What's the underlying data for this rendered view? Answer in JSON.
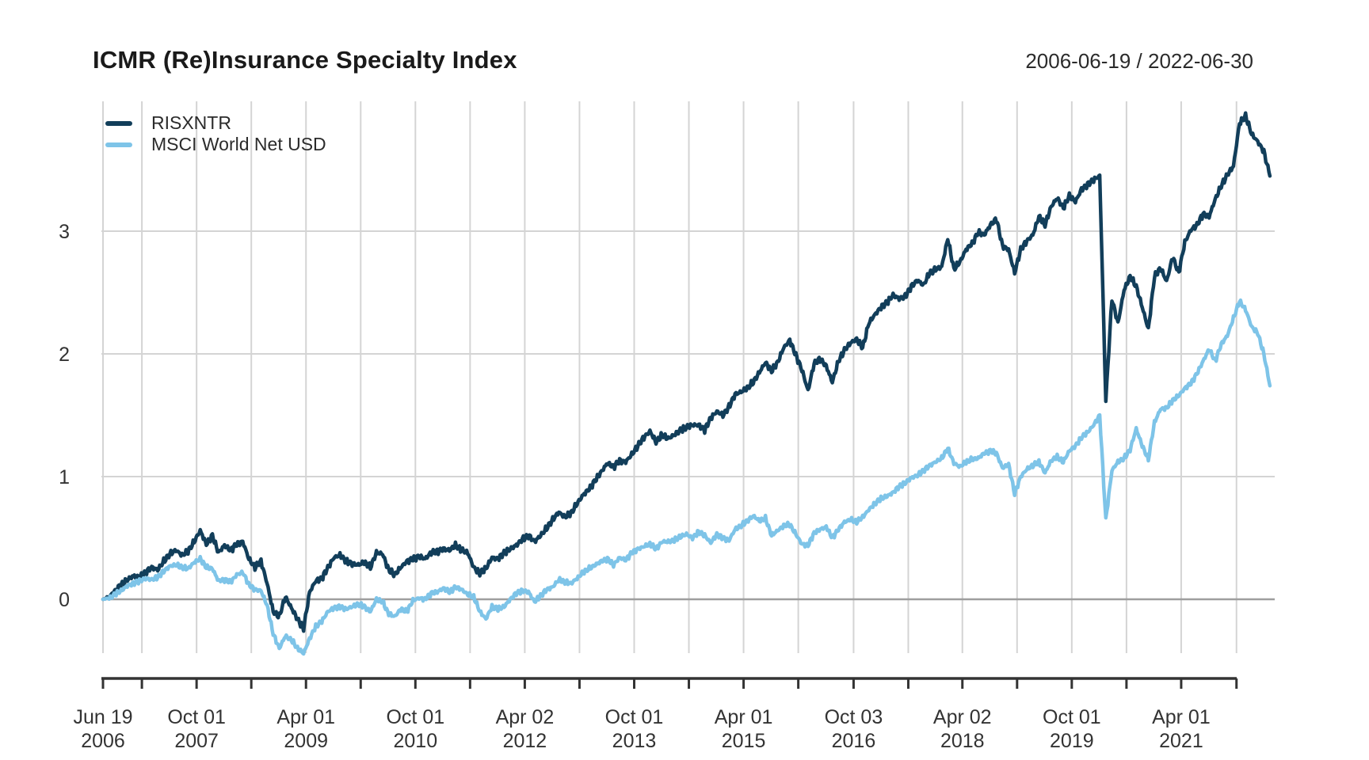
{
  "header": {
    "title": "ICMR (Re)Insurance Specialty Index",
    "date_range": "2006-06-19 / 2022-06-30"
  },
  "legend": {
    "position": "top-left",
    "entries": [
      {
        "label": "RISXNTR",
        "color": "#123E5A"
      },
      {
        "label": "MSCI World Net USD",
        "color": "#7EC4E8"
      }
    ]
  },
  "chart_data": {
    "type": "line",
    "title": "ICMR (Re)Insurance Specialty Index",
    "subtitle": "2006-06-19 / 2022-06-30",
    "xlabel": "",
    "ylabel": "",
    "x_unit": "months since 2006-06-19",
    "x_range_months": [
      0,
      192.4
    ],
    "ylim": [
      -0.55,
      4.06
    ],
    "y_ticks": [
      0,
      1,
      2,
      3
    ],
    "grid": "both",
    "zero_line": true,
    "legend_position": "top-left",
    "x_ticks": [
      {
        "m": 0,
        "label1": "Jun 19",
        "label2": "2006"
      },
      {
        "m": 6.4,
        "label1": "",
        "label2": ""
      },
      {
        "m": 15.4,
        "label1": "Oct 01",
        "label2": "2007"
      },
      {
        "m": 24.4,
        "label1": "",
        "label2": ""
      },
      {
        "m": 33.4,
        "label1": "Apr 01",
        "label2": "2009"
      },
      {
        "m": 42.4,
        "label1": "",
        "label2": ""
      },
      {
        "m": 51.4,
        "label1": "Oct 01",
        "label2": "2010"
      },
      {
        "m": 60.4,
        "label1": "",
        "label2": ""
      },
      {
        "m": 69.4,
        "label1": "Apr 02",
        "label2": "2012"
      },
      {
        "m": 78.4,
        "label1": "",
        "label2": ""
      },
      {
        "m": 87.4,
        "label1": "Oct 01",
        "label2": "2013"
      },
      {
        "m": 96.4,
        "label1": "",
        "label2": ""
      },
      {
        "m": 105.4,
        "label1": "Apr 01",
        "label2": "2015"
      },
      {
        "m": 114.4,
        "label1": "",
        "label2": ""
      },
      {
        "m": 123.5,
        "label1": "Oct 03",
        "label2": "2016"
      },
      {
        "m": 132.5,
        "label1": "",
        "label2": ""
      },
      {
        "m": 141.4,
        "label1": "Apr 02",
        "label2": "2018"
      },
      {
        "m": 150.4,
        "label1": "",
        "label2": ""
      },
      {
        "m": 159.4,
        "label1": "Oct 01",
        "label2": "2019"
      },
      {
        "m": 168.4,
        "label1": "",
        "label2": ""
      },
      {
        "m": 177.4,
        "label1": "Apr 01",
        "label2": "2021"
      },
      {
        "m": 186.5,
        "label1": "",
        "label2": ""
      }
    ],
    "series_start_month": "2006-06",
    "series_sampling": "monthly cumulative return (approx., read from plot)",
    "series": [
      {
        "name": "RISXNTR",
        "color": "#123E5A",
        "values": [
          0.0,
          0.02,
          0.07,
          0.12,
          0.16,
          0.19,
          0.18,
          0.22,
          0.26,
          0.24,
          0.31,
          0.37,
          0.4,
          0.36,
          0.39,
          0.47,
          0.56,
          0.45,
          0.52,
          0.38,
          0.44,
          0.4,
          0.45,
          0.47,
          0.33,
          0.26,
          0.31,
          0.13,
          -0.1,
          -0.14,
          0.02,
          -0.07,
          -0.16,
          -0.24,
          0.06,
          0.15,
          0.17,
          0.26,
          0.34,
          0.36,
          0.31,
          0.29,
          0.28,
          0.3,
          0.26,
          0.38,
          0.37,
          0.24,
          0.2,
          0.26,
          0.31,
          0.33,
          0.35,
          0.33,
          0.38,
          0.39,
          0.41,
          0.4,
          0.44,
          0.4,
          0.38,
          0.26,
          0.21,
          0.25,
          0.34,
          0.33,
          0.38,
          0.41,
          0.44,
          0.49,
          0.52,
          0.47,
          0.52,
          0.58,
          0.65,
          0.71,
          0.67,
          0.7,
          0.78,
          0.85,
          0.9,
          0.97,
          1.04,
          1.11,
          1.08,
          1.13,
          1.12,
          1.18,
          1.25,
          1.32,
          1.37,
          1.28,
          1.34,
          1.31,
          1.34,
          1.38,
          1.4,
          1.42,
          1.42,
          1.38,
          1.48,
          1.53,
          1.5,
          1.57,
          1.67,
          1.69,
          1.72,
          1.77,
          1.85,
          1.93,
          1.86,
          1.93,
          2.05,
          2.11,
          1.99,
          1.87,
          1.7,
          1.92,
          1.96,
          1.9,
          1.77,
          1.94,
          2.03,
          2.09,
          2.12,
          2.05,
          2.25,
          2.32,
          2.38,
          2.42,
          2.48,
          2.45,
          2.47,
          2.55,
          2.6,
          2.56,
          2.66,
          2.69,
          2.71,
          2.94,
          2.69,
          2.75,
          2.85,
          2.9,
          2.99,
          2.97,
          3.05,
          3.1,
          2.88,
          2.85,
          2.66,
          2.85,
          2.92,
          2.97,
          3.12,
          3.05,
          3.2,
          3.27,
          3.19,
          3.29,
          3.24,
          3.34,
          3.38,
          3.42,
          3.45,
          1.62,
          2.45,
          2.25,
          2.52,
          2.63,
          2.55,
          2.38,
          2.2,
          2.63,
          2.7,
          2.59,
          2.79,
          2.66,
          2.91,
          3.01,
          3.05,
          3.14,
          3.12,
          3.26,
          3.37,
          3.46,
          3.53,
          3.88,
          3.94,
          3.79,
          3.73,
          3.65,
          3.45
        ]
      },
      {
        "name": "MSCI World Net USD",
        "color": "#7EC4E8",
        "values": [
          0.0,
          0.01,
          0.04,
          0.07,
          0.11,
          0.13,
          0.15,
          0.17,
          0.16,
          0.18,
          0.23,
          0.27,
          0.28,
          0.26,
          0.25,
          0.3,
          0.33,
          0.26,
          0.25,
          0.15,
          0.16,
          0.14,
          0.2,
          0.22,
          0.12,
          0.08,
          0.07,
          -0.05,
          -0.28,
          -0.4,
          -0.3,
          -0.33,
          -0.4,
          -0.44,
          -0.32,
          -0.22,
          -0.18,
          -0.1,
          -0.07,
          -0.06,
          -0.08,
          -0.06,
          -0.04,
          -0.06,
          -0.1,
          0.0,
          -0.02,
          -0.12,
          -0.14,
          -0.08,
          -0.1,
          -0.01,
          0.01,
          0.0,
          0.05,
          0.06,
          0.09,
          0.06,
          0.1,
          0.08,
          0.04,
          0.02,
          -0.1,
          -0.16,
          -0.06,
          -0.08,
          -0.06,
          0.0,
          0.05,
          0.07,
          0.06,
          -0.02,
          0.03,
          0.08,
          0.1,
          0.16,
          0.14,
          0.13,
          0.17,
          0.22,
          0.25,
          0.28,
          0.31,
          0.33,
          0.28,
          0.34,
          0.32,
          0.38,
          0.41,
          0.43,
          0.45,
          0.41,
          0.47,
          0.47,
          0.48,
          0.51,
          0.53,
          0.5,
          0.55,
          0.52,
          0.46,
          0.53,
          0.5,
          0.48,
          0.57,
          0.6,
          0.64,
          0.68,
          0.64,
          0.66,
          0.52,
          0.56,
          0.6,
          0.61,
          0.53,
          0.45,
          0.44,
          0.54,
          0.57,
          0.59,
          0.5,
          0.57,
          0.63,
          0.65,
          0.63,
          0.67,
          0.73,
          0.78,
          0.82,
          0.84,
          0.87,
          0.92,
          0.95,
          0.99,
          1.01,
          1.05,
          1.09,
          1.12,
          1.15,
          1.23,
          1.11,
          1.08,
          1.12,
          1.14,
          1.15,
          1.19,
          1.21,
          1.19,
          1.07,
          1.1,
          0.86,
          1.0,
          1.06,
          1.09,
          1.12,
          1.03,
          1.13,
          1.16,
          1.12,
          1.21,
          1.25,
          1.32,
          1.36,
          1.42,
          1.5,
          0.65,
          1.05,
          1.12,
          1.15,
          1.22,
          1.39,
          1.25,
          1.14,
          1.44,
          1.55,
          1.56,
          1.62,
          1.66,
          1.72,
          1.76,
          1.84,
          1.94,
          2.04,
          1.94,
          2.08,
          2.15,
          2.29,
          2.43,
          2.36,
          2.22,
          2.17,
          2.0,
          1.74
        ]
      }
    ],
    "colors": {
      "grid": "#d4d4d4",
      "zero_line": "#9e9e9e",
      "axis": "#333333",
      "text": "#333333"
    }
  }
}
